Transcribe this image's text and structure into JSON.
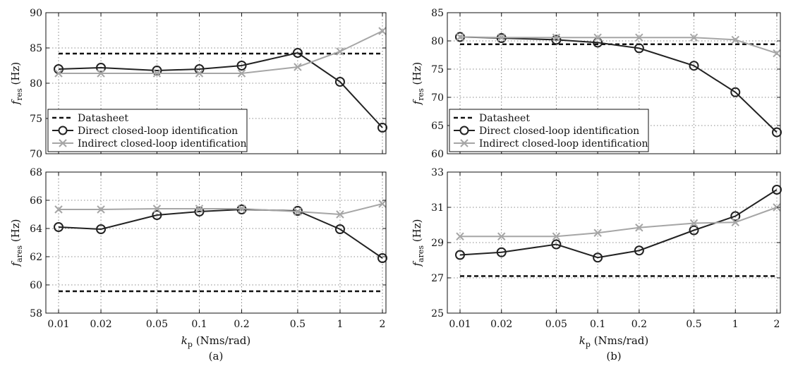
{
  "figure": {
    "captions": [
      "(a)",
      "(b)"
    ],
    "xlabel": "k_p (Nms/rad)",
    "xlabel_main": "k",
    "xlabel_sub": "p",
    "xlabel_unit": " (Nms/rad)"
  },
  "chart_data": [
    {
      "type": "line",
      "panel": "a",
      "ylabel_main": "f",
      "ylabel_sub": "res",
      "ylabel_unit": " (Hz)",
      "ylim": [
        70,
        90
      ],
      "yticks": [
        70,
        75,
        80,
        85,
        90
      ],
      "xscale": "log",
      "x": [
        0.01,
        0.02,
        0.05,
        0.1,
        0.2,
        0.5,
        1,
        2
      ],
      "xticklabels": [
        "0.01",
        "0.02",
        "0.05",
        "0.1",
        "0.2",
        "0.5",
        "1",
        "2"
      ],
      "grid": true,
      "legend_position": "bottom-left",
      "series": [
        {
          "name": "Datasheet",
          "values": [
            84.2,
            84.2,
            84.2,
            84.2,
            84.2,
            84.2,
            84.2,
            84.2
          ],
          "color": "#111111",
          "style": "dashed",
          "marker": "none"
        },
        {
          "name": "Direct closed-loop identification",
          "values": [
            82.0,
            82.2,
            81.8,
            82.0,
            82.5,
            84.3,
            80.2,
            73.7
          ],
          "color": "#222222",
          "style": "solid",
          "marker": "circle"
        },
        {
          "name": "Indirect closed-loop identification",
          "values": [
            81.4,
            81.4,
            81.4,
            81.4,
            81.4,
            82.3,
            84.5,
            87.4
          ],
          "color": "#a6a6a6",
          "style": "solid",
          "marker": "x"
        }
      ]
    },
    {
      "type": "line",
      "panel": "a",
      "ylabel_main": "f",
      "ylabel_sub": "ares",
      "ylabel_unit": " (Hz)",
      "ylim": [
        58,
        68
      ],
      "yticks": [
        58,
        60,
        62,
        64,
        66,
        68
      ],
      "xscale": "log",
      "x": [
        0.01,
        0.02,
        0.05,
        0.1,
        0.2,
        0.5,
        1,
        2
      ],
      "xticklabels": [
        "0.01",
        "0.02",
        "0.05",
        "0.1",
        "0.2",
        "0.5",
        "1",
        "2"
      ],
      "grid": true,
      "series": [
        {
          "name": "Datasheet",
          "values": [
            59.55,
            59.55,
            59.55,
            59.55,
            59.55,
            59.55,
            59.55,
            59.55
          ],
          "color": "#111111",
          "style": "dashed",
          "marker": "none"
        },
        {
          "name": "Direct closed-loop identification",
          "values": [
            64.1,
            63.95,
            64.95,
            65.2,
            65.35,
            65.25,
            63.95,
            61.9
          ],
          "color": "#222222",
          "style": "solid",
          "marker": "circle"
        },
        {
          "name": "Indirect closed-loop identification",
          "values": [
            65.35,
            65.35,
            65.4,
            65.4,
            65.4,
            65.2,
            65.0,
            65.75
          ],
          "color": "#a6a6a6",
          "style": "solid",
          "marker": "x"
        }
      ]
    },
    {
      "type": "line",
      "panel": "b",
      "ylabel_main": "f",
      "ylabel_sub": "res",
      "ylabel_unit": " (Hz)",
      "ylim": [
        60,
        85
      ],
      "yticks": [
        60,
        65,
        70,
        75,
        80,
        85
      ],
      "xscale": "log",
      "x": [
        0.01,
        0.02,
        0.05,
        0.1,
        0.2,
        0.5,
        1,
        2
      ],
      "xticklabels": [
        "0.01",
        "0.02",
        "0.05",
        "0.1",
        "0.2",
        "0.5",
        "1",
        "2"
      ],
      "grid": true,
      "legend_position": "bottom-left",
      "series": [
        {
          "name": "Datasheet",
          "values": [
            79.4,
            79.4,
            79.4,
            79.4,
            79.4,
            79.4,
            79.4,
            79.4
          ],
          "color": "#111111",
          "style": "dashed",
          "marker": "none"
        },
        {
          "name": "Direct closed-loop identification",
          "values": [
            80.7,
            80.5,
            80.2,
            79.7,
            78.7,
            75.6,
            70.9,
            63.8
          ],
          "color": "#222222",
          "style": "solid",
          "marker": "circle"
        },
        {
          "name": "Indirect closed-loop identification",
          "values": [
            80.7,
            80.6,
            80.6,
            80.6,
            80.6,
            80.6,
            80.2,
            77.8
          ],
          "color": "#a6a6a6",
          "style": "solid",
          "marker": "x"
        }
      ]
    },
    {
      "type": "line",
      "panel": "b",
      "ylabel_main": "f",
      "ylabel_sub": "ares",
      "ylabel_unit": " (Hz)",
      "ylim": [
        25,
        33
      ],
      "yticks": [
        25,
        27,
        29,
        31,
        33
      ],
      "xscale": "log",
      "x": [
        0.01,
        0.02,
        0.05,
        0.1,
        0.2,
        0.5,
        1,
        2
      ],
      "xticklabels": [
        "0.01",
        "0.02",
        "0.05",
        "0.1",
        "0.2",
        "0.5",
        "1",
        "2"
      ],
      "grid": true,
      "series": [
        {
          "name": "Datasheet",
          "values": [
            27.1,
            27.1,
            27.1,
            27.1,
            27.1,
            27.1,
            27.1,
            27.1
          ],
          "color": "#111111",
          "style": "dashed",
          "marker": "none"
        },
        {
          "name": "Direct closed-loop identification",
          "values": [
            28.3,
            28.45,
            28.9,
            28.15,
            28.55,
            29.7,
            30.5,
            32.0
          ],
          "color": "#222222",
          "style": "solid",
          "marker": "circle"
        },
        {
          "name": "Indirect closed-loop identification",
          "values": [
            29.35,
            29.35,
            29.35,
            29.55,
            29.85,
            30.1,
            30.15,
            31.0
          ],
          "color": "#a6a6a6",
          "style": "solid",
          "marker": "x"
        }
      ]
    }
  ]
}
